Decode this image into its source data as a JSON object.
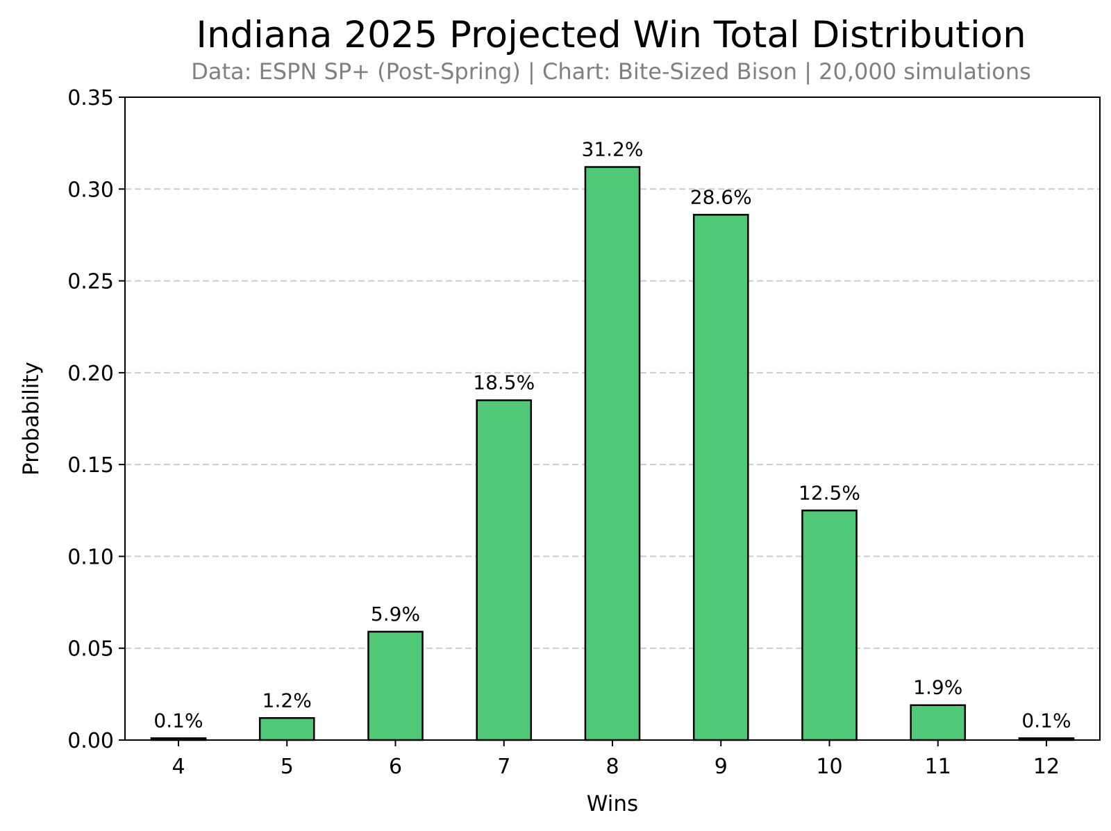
{
  "chart_data": {
    "type": "bar",
    "title": "Indiana 2025 Projected Win Total Distribution",
    "subtitle": "Data: ESPN SP+ (Post-Spring) | Chart: Bite-Sized Bison | 20,000 simulations",
    "xlabel": "Wins",
    "ylabel": "Probability",
    "categories": [
      "4",
      "5",
      "6",
      "7",
      "8",
      "9",
      "10",
      "11",
      "12"
    ],
    "values": [
      0.001,
      0.012,
      0.059,
      0.185,
      0.312,
      0.286,
      0.125,
      0.019,
      0.001
    ],
    "data_labels": [
      "0.1%",
      "1.2%",
      "5.9%",
      "18.5%",
      "31.2%",
      "28.6%",
      "12.5%",
      "1.9%",
      "0.1%"
    ],
    "ylim": [
      0,
      0.35
    ],
    "yticks": [
      "0.00",
      "0.05",
      "0.10",
      "0.15",
      "0.20",
      "0.25",
      "0.30",
      "0.35"
    ],
    "ytick_values": [
      0,
      0.05,
      0.1,
      0.15,
      0.2,
      0.25,
      0.3,
      0.35
    ],
    "grid": "horizontal dashed",
    "bar_color": "#50c878",
    "edge_color": "#000000"
  }
}
